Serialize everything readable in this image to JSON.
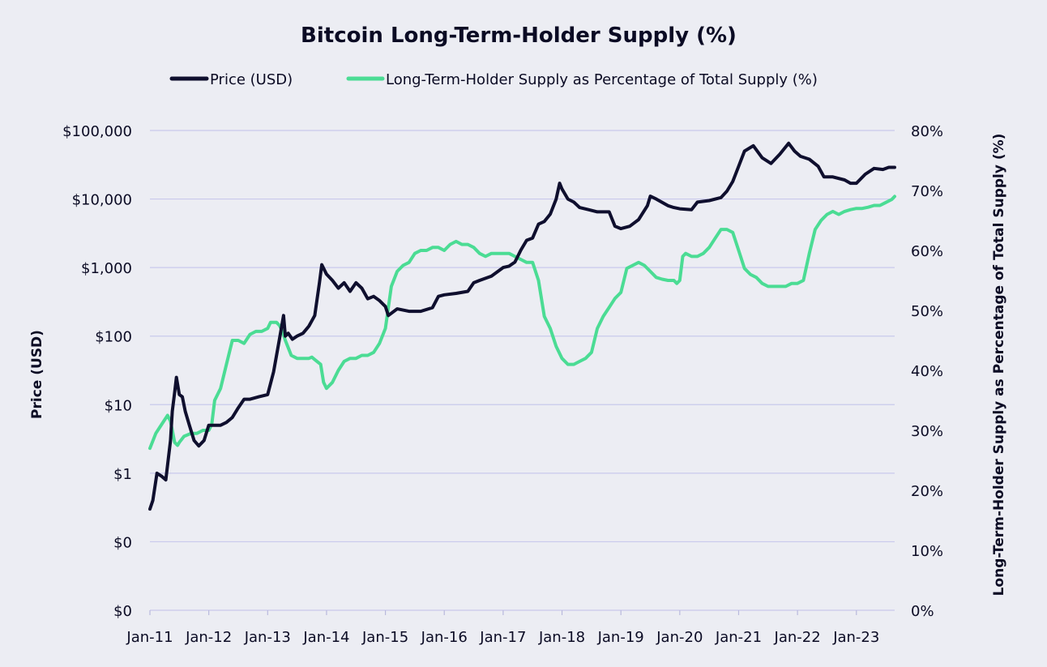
{
  "chart_data": {
    "type": "line",
    "title": "Bitcoin Long-Term-Holder Supply (%)",
    "ylabel_left": "Price (USD)",
    "ylabel_right": "Long-Term-Holder Supply as Percentage of Total Supply (%)",
    "legend_position": "top-center",
    "grid": true,
    "x_ticks": [
      "Jan-11",
      "Jan-12",
      "Jan-13",
      "Jan-14",
      "Jan-15",
      "Jan-16",
      "Jan-17",
      "Jan-18",
      "Jan-19",
      "Jan-20",
      "Jan-21",
      "Jan-22",
      "Jan-23"
    ],
    "x_range": [
      2011.0,
      2023.65
    ],
    "y_left": {
      "scale": "log",
      "range_log10": [
        -2,
        5
      ],
      "tick_labels": [
        "$0",
        "$0",
        "$1",
        "$10",
        "$100",
        "$1,000",
        "$10,000",
        "$100,000"
      ]
    },
    "y_right": {
      "scale": "linear",
      "range": [
        0,
        80
      ],
      "tick_labels": [
        "0%",
        "10%",
        "20%",
        "30%",
        "40%",
        "50%",
        "60%",
        "70%",
        "80%"
      ]
    },
    "colors": {
      "price": "#0f0f2e",
      "lth": "#4bdc94"
    },
    "series": [
      {
        "name": "Price (USD)",
        "axis": "left",
        "x": [
          2011.0,
          2011.05,
          2011.12,
          2011.2,
          2011.27,
          2011.35,
          2011.38,
          2011.42,
          2011.45,
          2011.5,
          2011.55,
          2011.6,
          2011.67,
          2011.75,
          2011.83,
          2011.92,
          2012.0,
          2012.1,
          2012.2,
          2012.3,
          2012.4,
          2012.5,
          2012.6,
          2012.7,
          2012.85,
          2013.0,
          2013.1,
          2013.2,
          2013.27,
          2013.3,
          2013.35,
          2013.42,
          2013.5,
          2013.6,
          2013.7,
          2013.8,
          2013.88,
          2013.92,
          2014.0,
          2014.1,
          2014.2,
          2014.3,
          2014.4,
          2014.5,
          2014.6,
          2014.7,
          2014.8,
          2014.9,
          2015.0,
          2015.05,
          2015.2,
          2015.4,
          2015.6,
          2015.8,
          2015.9,
          2016.0,
          2016.2,
          2016.4,
          2016.5,
          2016.6,
          2016.8,
          2017.0,
          2017.1,
          2017.2,
          2017.3,
          2017.4,
          2017.5,
          2017.6,
          2017.7,
          2017.8,
          2017.9,
          2017.96,
          2018.0,
          2018.1,
          2018.2,
          2018.3,
          2018.45,
          2018.6,
          2018.8,
          2018.9,
          2019.0,
          2019.15,
          2019.3,
          2019.45,
          2019.5,
          2019.6,
          2019.8,
          2019.9,
          2020.0,
          2020.2,
          2020.3,
          2020.5,
          2020.7,
          2020.8,
          2020.9,
          2021.0,
          2021.1,
          2021.25,
          2021.4,
          2021.55,
          2021.7,
          2021.85,
          2021.95,
          2022.05,
          2022.2,
          2022.35,
          2022.45,
          2022.6,
          2022.8,
          2022.9,
          2023.0,
          2023.15,
          2023.3,
          2023.45,
          2023.55,
          2023.65
        ],
        "y": [
          0.3,
          0.4,
          1,
          0.9,
          0.8,
          3,
          8,
          15,
          25,
          14,
          13,
          8,
          5,
          3,
          2.5,
          3,
          5,
          5,
          5,
          5.5,
          6.5,
          9,
          12,
          12,
          13,
          14,
          30,
          90,
          200,
          100,
          110,
          90,
          100,
          110,
          140,
          200,
          600,
          1100,
          800,
          650,
          500,
          600,
          450,
          600,
          500,
          350,
          380,
          330,
          270,
          200,
          250,
          230,
          230,
          260,
          380,
          400,
          420,
          450,
          600,
          650,
          750,
          1000,
          1050,
          1200,
          1800,
          2500,
          2700,
          4300,
          4700,
          6000,
          10000,
          17000,
          14000,
          10000,
          9000,
          7500,
          7000,
          6500,
          6500,
          4000,
          3700,
          4000,
          5000,
          8000,
          11000,
          10000,
          8000,
          7500,
          7200,
          7000,
          9000,
          9500,
          10500,
          13000,
          18000,
          30000,
          50000,
          60000,
          40000,
          33000,
          45000,
          65000,
          50000,
          42000,
          38000,
          30000,
          21000,
          21000,
          19000,
          17000,
          17000,
          23000,
          28000,
          27000,
          29000,
          29000
        ]
      },
      {
        "name": "Long-Term-Holder Supply as Percentage of Total Supply (%)",
        "axis": "right",
        "x": [
          2011.0,
          2011.1,
          2011.2,
          2011.3,
          2011.35,
          2011.42,
          2011.47,
          2011.5,
          2011.58,
          2011.7,
          2011.8,
          2011.9,
          2012.0,
          2012.05,
          2012.1,
          2012.2,
          2012.3,
          2012.4,
          2012.5,
          2012.6,
          2012.7,
          2012.8,
          2012.9,
          2013.0,
          2013.05,
          2013.15,
          2013.2,
          2013.25,
          2013.3,
          2013.4,
          2013.5,
          2013.6,
          2013.7,
          2013.75,
          2013.8,
          2013.9,
          2013.95,
          2014.0,
          2014.1,
          2014.2,
          2014.3,
          2014.4,
          2014.5,
          2014.6,
          2014.7,
          2014.8,
          2014.9,
          2015.0,
          2015.1,
          2015.2,
          2015.3,
          2015.4,
          2015.5,
          2015.6,
          2015.7,
          2015.8,
          2015.9,
          2016.0,
          2016.1,
          2016.2,
          2016.3,
          2016.4,
          2016.5,
          2016.6,
          2016.7,
          2016.8,
          2016.9,
          2017.0,
          2017.1,
          2017.2,
          2017.3,
          2017.4,
          2017.5,
          2017.6,
          2017.7,
          2017.8,
          2017.9,
          2018.0,
          2018.1,
          2018.2,
          2018.3,
          2018.4,
          2018.5,
          2018.6,
          2018.7,
          2018.8,
          2018.9,
          2019.0,
          2019.1,
          2019.2,
          2019.3,
          2019.4,
          2019.5,
          2019.6,
          2019.7,
          2019.8,
          2019.9,
          2019.95,
          2020.0,
          2020.05,
          2020.1,
          2020.2,
          2020.3,
          2020.4,
          2020.5,
          2020.6,
          2020.7,
          2020.8,
          2020.9,
          2021.0,
          2021.1,
          2021.2,
          2021.3,
          2021.4,
          2021.5,
          2021.6,
          2021.7,
          2021.8,
          2021.9,
          2022.0,
          2022.1,
          2022.2,
          2022.3,
          2022.4,
          2022.5,
          2022.6,
          2022.7,
          2022.8,
          2022.9,
          2023.0,
          2023.1,
          2023.2,
          2023.3,
          2023.4,
          2023.5,
          2023.6,
          2023.65
        ],
        "y": [
          27,
          29.5,
          31,
          32.5,
          31.5,
          28,
          27.5,
          28,
          29,
          29.5,
          29.5,
          30,
          30,
          31,
          35,
          37,
          41,
          45,
          45,
          44.5,
          46,
          46.5,
          46.5,
          47,
          48,
          48,
          47.5,
          46.5,
          45,
          42.5,
          42,
          42,
          42,
          42.2,
          41.8,
          41,
          38,
          37,
          38,
          40,
          41.5,
          42,
          42,
          42.5,
          42.5,
          43,
          44.5,
          47,
          54,
          56.5,
          57.5,
          58,
          59.5,
          60,
          60,
          60.5,
          60.5,
          60,
          61,
          61.5,
          61,
          61,
          60.5,
          59.5,
          59,
          59.5,
          59.5,
          59.5,
          59.5,
          59,
          58.5,
          58,
          58,
          55,
          49,
          47,
          44,
          42,
          41,
          41,
          41.5,
          42,
          43,
          47,
          49,
          50.5,
          52,
          53,
          57,
          57.5,
          58,
          57.5,
          56.5,
          55.5,
          55.2,
          55,
          55,
          54.5,
          55,
          59,
          59.5,
          59,
          59,
          59.5,
          60.5,
          62,
          63.5,
          63.5,
          63,
          60,
          57,
          56,
          55.5,
          54.5,
          54,
          54,
          54,
          54,
          54.5,
          54.5,
          55,
          59.5,
          63.5,
          65,
          66,
          66.5,
          66,
          66.5,
          66.8,
          67,
          67,
          67.2,
          67.5,
          67.5,
          68,
          68.5,
          69
        ]
      }
    ]
  }
}
